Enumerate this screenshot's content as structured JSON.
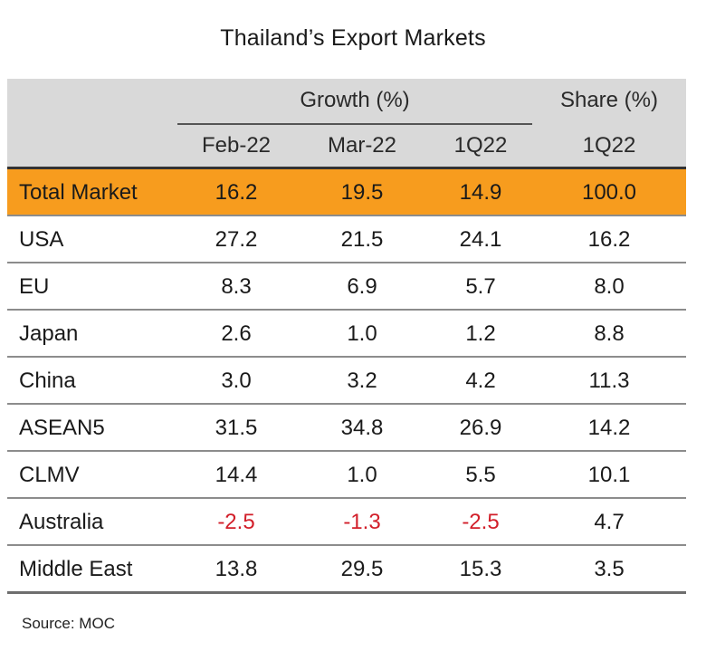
{
  "title": "Thailand’s Export Markets",
  "header": {
    "group_growth": "Growth (%)",
    "group_share": "Share (%)",
    "sub_columns": [
      "Feb-22",
      "Mar-22",
      "1Q22",
      "1Q22"
    ]
  },
  "source": "Source: MOC",
  "colors": {
    "highlight": "#f79c1e",
    "header_bg": "#d9d9d9",
    "negative": "#d21f2a"
  },
  "chart_data": {
    "type": "table",
    "title": "Thailand’s Export Markets",
    "columns": [
      "Feb-22",
      "Mar-22",
      "1Q22",
      "1Q22"
    ],
    "column_groups": [
      {
        "name": "Growth (%)",
        "columns": [
          "Feb-22",
          "Mar-22",
          "1Q22"
        ]
      },
      {
        "name": "Share (%)",
        "columns": [
          "1Q22"
        ]
      }
    ],
    "rows": [
      {
        "label": "Total Market",
        "values": [
          "16.2",
          "19.5",
          "14.9",
          "100.0"
        ],
        "highlight": true
      },
      {
        "label": "USA",
        "values": [
          "27.2",
          "21.5",
          "24.1",
          "16.2"
        ]
      },
      {
        "label": "EU",
        "values": [
          "8.3",
          "6.9",
          "5.7",
          "8.0"
        ]
      },
      {
        "label": "Japan",
        "values": [
          "2.6",
          "1.0",
          "1.2",
          "8.8"
        ]
      },
      {
        "label": "China",
        "values": [
          "3.0",
          "3.2",
          "4.2",
          "11.3"
        ]
      },
      {
        "label": "ASEAN5",
        "values": [
          "31.5",
          "34.8",
          "26.9",
          "14.2"
        ]
      },
      {
        "label": "CLMV",
        "values": [
          "14.4",
          "1.0",
          "5.5",
          "10.1"
        ]
      },
      {
        "label": "Australia",
        "values": [
          "-2.5",
          "-1.3",
          "-2.5",
          "4.7"
        ]
      },
      {
        "label": "Middle East",
        "values": [
          "13.8",
          "29.5",
          "15.3",
          "3.5"
        ]
      }
    ]
  }
}
